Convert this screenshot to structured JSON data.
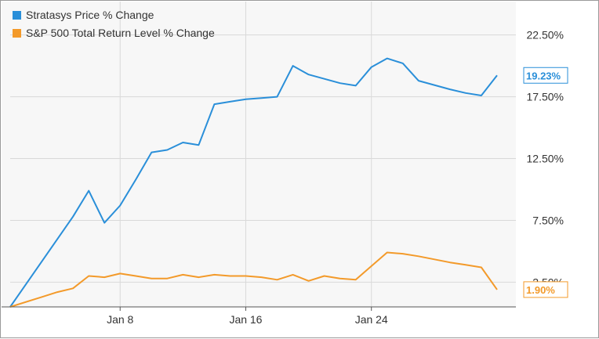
{
  "chart_data": {
    "type": "line",
    "title": "",
    "xlabel": "",
    "ylabel": "",
    "x_tick_labels": [
      {
        "label": "Jan 8",
        "day": 8
      },
      {
        "label": "Jan 16",
        "day": 16
      },
      {
        "label": "Jan 24",
        "day": 24
      }
    ],
    "y_tick_labels": [
      "22.50%",
      "17.50%",
      "12.50%",
      "7.50%",
      "2.50%"
    ],
    "y_ticks": [
      22.5,
      17.5,
      12.5,
      7.5,
      2.5
    ],
    "xlim": [
      1,
      33.2
    ],
    "ylim": [
      0.5,
      25.2
    ],
    "grid": true,
    "legend_position": "top-left",
    "series": [
      {
        "name": "Stratasys Price % Change",
        "color": "#2a8fd9",
        "end_label": "19.23%",
        "points": [
          [
            1,
            0.5
          ],
          [
            5,
            7.8
          ],
          [
            6,
            9.9
          ],
          [
            7,
            7.3
          ],
          [
            8,
            8.7
          ],
          [
            9,
            10.8
          ],
          [
            10,
            13.0
          ],
          [
            11,
            13.2
          ],
          [
            12,
            13.8
          ],
          [
            13,
            13.6
          ],
          [
            14,
            16.9
          ],
          [
            15,
            17.1
          ],
          [
            16,
            17.3
          ],
          [
            17,
            17.4
          ],
          [
            18,
            17.5
          ],
          [
            19,
            20.0
          ],
          [
            20,
            19.3
          ],
          [
            22,
            18.6
          ],
          [
            23,
            18.4
          ],
          [
            24,
            19.9
          ],
          [
            25,
            20.6
          ],
          [
            26,
            20.2
          ],
          [
            27,
            18.8
          ],
          [
            29,
            18.1
          ],
          [
            30,
            17.8
          ],
          [
            31,
            17.6
          ],
          [
            32,
            19.23
          ]
        ]
      },
      {
        "name": "S&P 500 Total Return Level % Change",
        "color": "#f39a2a",
        "end_label": "1.90%",
        "points": [
          [
            1,
            0.5
          ],
          [
            3,
            1.3
          ],
          [
            4,
            1.7
          ],
          [
            5,
            2.0
          ],
          [
            6,
            3.0
          ],
          [
            7,
            2.9
          ],
          [
            8,
            3.2
          ],
          [
            9,
            3.0
          ],
          [
            10,
            2.8
          ],
          [
            11,
            2.8
          ],
          [
            12,
            3.1
          ],
          [
            13,
            2.9
          ],
          [
            14,
            3.1
          ],
          [
            15,
            3.0
          ],
          [
            16,
            3.0
          ],
          [
            17,
            2.9
          ],
          [
            18,
            2.7
          ],
          [
            19,
            3.1
          ],
          [
            20,
            2.6
          ],
          [
            21,
            3.0
          ],
          [
            22,
            2.8
          ],
          [
            23,
            2.7
          ],
          [
            24,
            3.8
          ],
          [
            25,
            4.9
          ],
          [
            26,
            4.8
          ],
          [
            27,
            4.6
          ],
          [
            29,
            4.1
          ],
          [
            30,
            3.9
          ],
          [
            31,
            3.7
          ],
          [
            32,
            1.9
          ]
        ]
      }
    ]
  }
}
